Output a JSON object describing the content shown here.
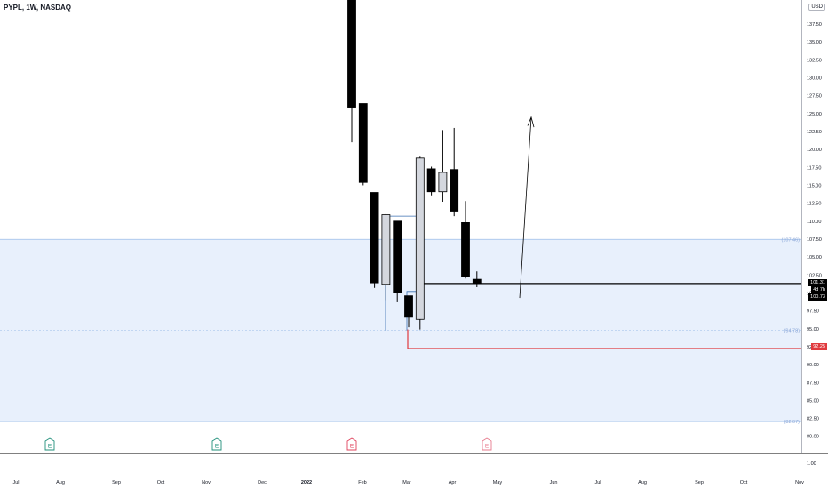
{
  "header": {
    "ticker": "PYPL, 1W, NASDAQ"
  },
  "price_scale": {
    "currency": "USD",
    "ticks": [
      "137.50",
      "135.00",
      "132.50",
      "130.00",
      "127.50",
      "125.00",
      "122.50",
      "120.00",
      "117.50",
      "115.00",
      "112.50",
      "110.00",
      "107.50",
      "105.00",
      "102.50",
      "100.00",
      "97.50",
      "95.00",
      "92.50",
      "90.00",
      "87.50",
      "85.00",
      "82.50",
      "80.00"
    ],
    "lower_pane_tick": "1.00",
    "last_price": "101.31",
    "countdown": "4d 7h",
    "ma_value": "100.73",
    "stop_price": "92.25"
  },
  "zones": {
    "upper_label": "107.46",
    "mid_label": "94.78",
    "lower_label": "82.07"
  },
  "date_axis": [
    "Jul",
    "Aug",
    "Sep",
    "Oct",
    "Nov",
    "Dec",
    "2022",
    "Feb",
    "Mar",
    "Apr",
    "May",
    "Jun",
    "Jul",
    "Aug",
    "Sep",
    "Oct",
    "Nov"
  ],
  "events": [
    "E",
    "E",
    "E",
    "E"
  ],
  "colors": {
    "zone_fill": "#e8f0fc",
    "zone_line": "#9bbce8",
    "stop_line": "#e03a3e",
    "bull": "#d4d7de",
    "bear": "#000000",
    "earnings_green": "#1f8f7a",
    "earnings_red": "#e0435d"
  },
  "chart_data": {
    "type": "candlestick",
    "title": "PYPL, 1W, NASDAQ",
    "ylim": [
      80,
      140
    ],
    "ohlc": [
      {
        "o": 142.0,
        "h": 142.0,
        "l": 121.0,
        "c": 125.9
      },
      {
        "o": 126.4,
        "h": 126.4,
        "l": 115.0,
        "c": 115.4
      },
      {
        "o": 114.0,
        "h": 114.0,
        "l": 100.7,
        "c": 101.4
      },
      {
        "o": 101.2,
        "h": 111.0,
        "l": 99.0,
        "c": 110.9
      },
      {
        "o": 110.0,
        "h": 110.0,
        "l": 98.7,
        "c": 100.1
      },
      {
        "o": 99.6,
        "h": 99.6,
        "l": 95.2,
        "c": 96.6
      },
      {
        "o": 96.3,
        "h": 119.0,
        "l": 94.9,
        "c": 118.8
      },
      {
        "o": 117.3,
        "h": 117.6,
        "l": 113.6,
        "c": 114.1
      },
      {
        "o": 114.1,
        "h": 122.7,
        "l": 112.7,
        "c": 116.8
      },
      {
        "o": 117.2,
        "h": 123.0,
        "l": 110.7,
        "c": 111.4
      },
      {
        "o": 109.8,
        "h": 112.8,
        "l": 102.0,
        "c": 102.3
      },
      {
        "o": 101.9,
        "h": 103.0,
        "l": 100.8,
        "c": 101.3
      }
    ],
    "levels": {
      "last_price": 101.31,
      "stop": 92.25,
      "zone_top": 107.46,
      "zone_mid": 94.78,
      "zone_bottom": 82.07
    }
  }
}
